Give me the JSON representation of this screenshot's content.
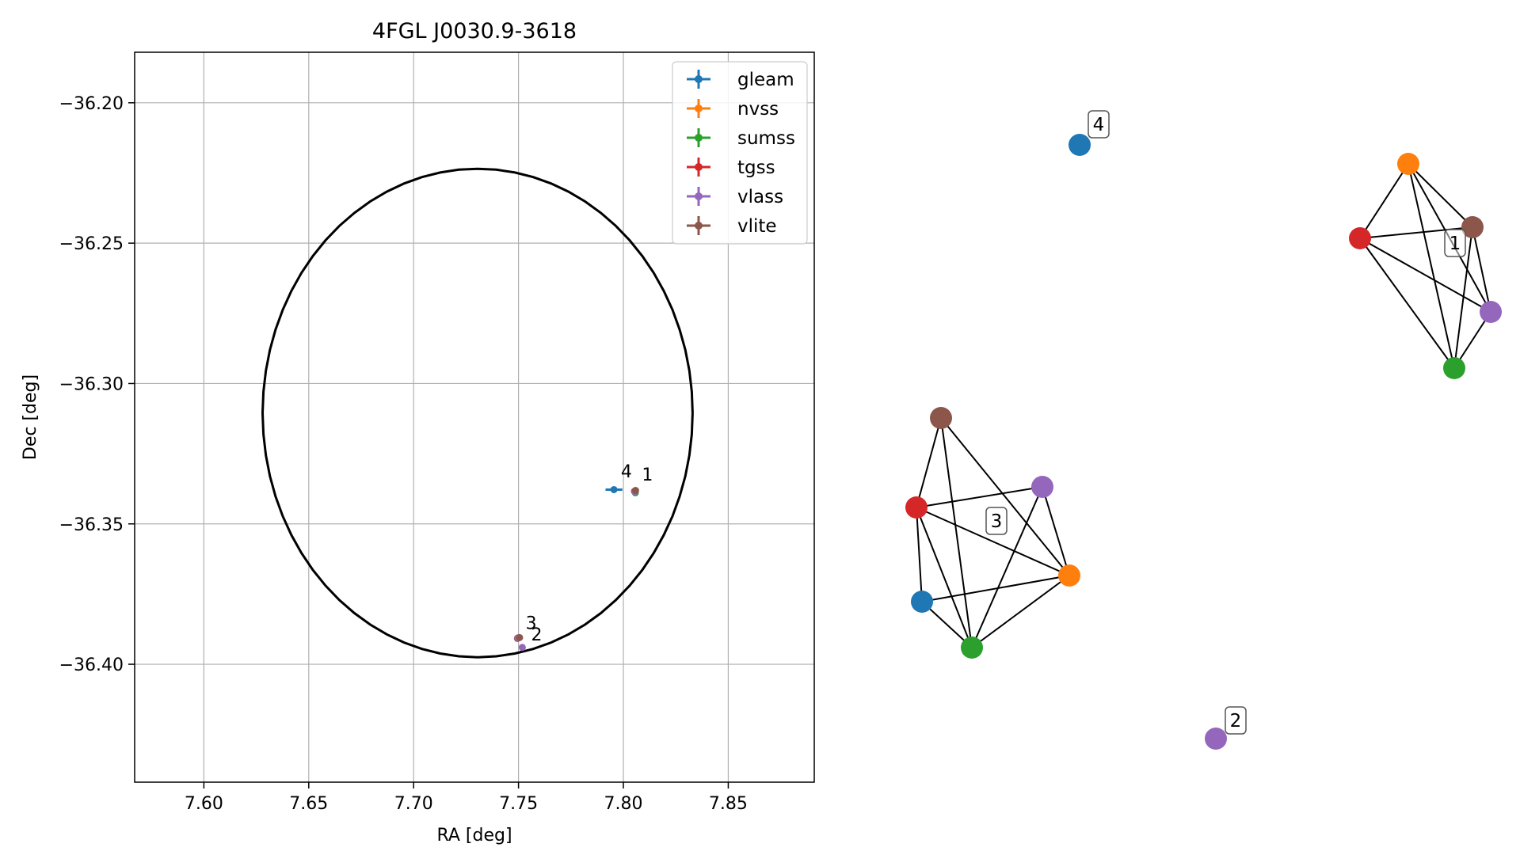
{
  "chart_data": [
    {
      "type": "scatter",
      "title": "4FGL J0030.9-3618",
      "xlabel": "RA [deg]",
      "ylabel": "Dec [deg]",
      "xlim": [
        7.567,
        7.891
      ],
      "ylim": [
        -36.442,
        -36.182
      ],
      "xticks": [
        7.6,
        7.65,
        7.7,
        7.75,
        7.8,
        7.85
      ],
      "xtick_labels": [
        "7.60",
        "7.65",
        "7.70",
        "7.75",
        "7.80",
        "7.85"
      ],
      "yticks": [
        -36.2,
        -36.25,
        -36.3,
        -36.35,
        -36.4
      ],
      "ytick_labels": [
        "−36.20",
        "−36.25",
        "−36.30",
        "−36.35",
        "−36.40"
      ],
      "grid": true,
      "legend_position": "top-right",
      "ellipse": {
        "center": [
          7.7305,
          -36.3105
        ],
        "semi_axis_ra": 0.1025,
        "semi_axis_dec": 0.087,
        "color": "#000000"
      },
      "series": [
        {
          "name": "gleam",
          "color": "#1f77b4",
          "points": [
            {
              "x": 7.7955,
              "y": -36.3378,
              "xerr": 0.004,
              "yerr": 0.0008
            }
          ]
        },
        {
          "name": "nvss",
          "color": "#ff7f0e",
          "points": [
            {
              "x": 7.8055,
              "y": -36.3383,
              "xerr": 0.0005,
              "yerr": 0.0005
            }
          ]
        },
        {
          "name": "sumss",
          "color": "#2ca02c",
          "points": [
            {
              "x": 7.8057,
              "y": -36.3389,
              "xerr": 0.0006,
              "yerr": 0.0006
            },
            {
              "x": 7.7495,
              "y": -36.3908,
              "xerr": 0.0005,
              "yerr": 0.0005
            }
          ]
        },
        {
          "name": "tgss",
          "color": "#d62728",
          "points": [
            {
              "x": 7.8053,
              "y": -36.3384,
              "xerr": 0.0005,
              "yerr": 0.0005
            },
            {
              "x": 7.7496,
              "y": -36.3907,
              "xerr": 0.0005,
              "yerr": 0.0005
            }
          ]
        },
        {
          "name": "vlass",
          "color": "#9467bd",
          "points": [
            {
              "x": 7.8055,
              "y": -36.3385,
              "xerr": 0.0003,
              "yerr": 0.0003
            },
            {
              "x": 7.7518,
              "y": -36.394,
              "xerr": 0.0003,
              "yerr": 0.0003
            },
            {
              "x": 7.7497,
              "y": -36.3906,
              "xerr": 0.0003,
              "yerr": 0.0003
            }
          ]
        },
        {
          "name": "vlite",
          "color": "#8c564b",
          "points": [
            {
              "x": 7.8058,
              "y": -36.3381,
              "xerr": 0.0008,
              "yerr": 0.0008
            },
            {
              "x": 7.7505,
              "y": -36.3905,
              "xerr": 0.0008,
              "yerr": 0.0008
            }
          ]
        }
      ],
      "annotations": [
        {
          "text": "4",
          "x": 7.7988,
          "y": -36.3335
        },
        {
          "text": "1",
          "x": 7.8088,
          "y": -36.3345
        },
        {
          "text": "3",
          "x": 7.7534,
          "y": -36.3875
        },
        {
          "text": "2",
          "x": 7.756,
          "y": -36.3915
        }
      ]
    },
    {
      "type": "graph",
      "nodes": [
        {
          "id": "g1-nvss",
          "color": "#ff7f0e"
        },
        {
          "id": "g1-vlite",
          "color": "#8c564b"
        },
        {
          "id": "g1-tgss",
          "color": "#d62728"
        },
        {
          "id": "g1-vlass",
          "color": "#9467bd"
        },
        {
          "id": "g1-sumss",
          "color": "#2ca02c"
        },
        {
          "id": "g3-vlite",
          "color": "#8c564b"
        },
        {
          "id": "g3-vlass",
          "color": "#9467bd"
        },
        {
          "id": "g3-tgss",
          "color": "#d62728"
        },
        {
          "id": "g3-nvss",
          "color": "#ff7f0e"
        },
        {
          "id": "g3-gleam",
          "color": "#1f77b4"
        },
        {
          "id": "g3-sumss",
          "color": "#2ca02c"
        },
        {
          "id": "g4-gleam",
          "color": "#1f77b4"
        },
        {
          "id": "g2-vlass",
          "color": "#9467bd"
        }
      ],
      "edges": [
        [
          "g1-nvss",
          "g1-vlite"
        ],
        [
          "g1-nvss",
          "g1-tgss"
        ],
        [
          "g1-nvss",
          "g1-vlass"
        ],
        [
          "g1-nvss",
          "g1-sumss"
        ],
        [
          "g1-vlite",
          "g1-tgss"
        ],
        [
          "g1-vlite",
          "g1-vlass"
        ],
        [
          "g1-vlite",
          "g1-sumss"
        ],
        [
          "g1-tgss",
          "g1-vlass"
        ],
        [
          "g1-tgss",
          "g1-sumss"
        ],
        [
          "g1-vlass",
          "g1-sumss"
        ],
        [
          "g3-vlite",
          "g3-tgss"
        ],
        [
          "g3-vlite",
          "g3-nvss"
        ],
        [
          "g3-vlite",
          "g3-sumss"
        ],
        [
          "g3-vlass",
          "g3-tgss"
        ],
        [
          "g3-vlass",
          "g3-nvss"
        ],
        [
          "g3-vlass",
          "g3-sumss"
        ],
        [
          "g3-tgss",
          "g3-nvss"
        ],
        [
          "g3-tgss",
          "g3-gleam"
        ],
        [
          "g3-tgss",
          "g3-sumss"
        ],
        [
          "g3-nvss",
          "g3-gleam"
        ],
        [
          "g3-nvss",
          "g3-sumss"
        ],
        [
          "g3-gleam",
          "g3-sumss"
        ]
      ],
      "group_labels": [
        {
          "text": "1",
          "near": "g1-vlite"
        },
        {
          "text": "3",
          "near": "g3-tgss"
        },
        {
          "text": "4",
          "near": "g4-gleam"
        },
        {
          "text": "2",
          "near": "g2-vlass"
        }
      ]
    }
  ]
}
